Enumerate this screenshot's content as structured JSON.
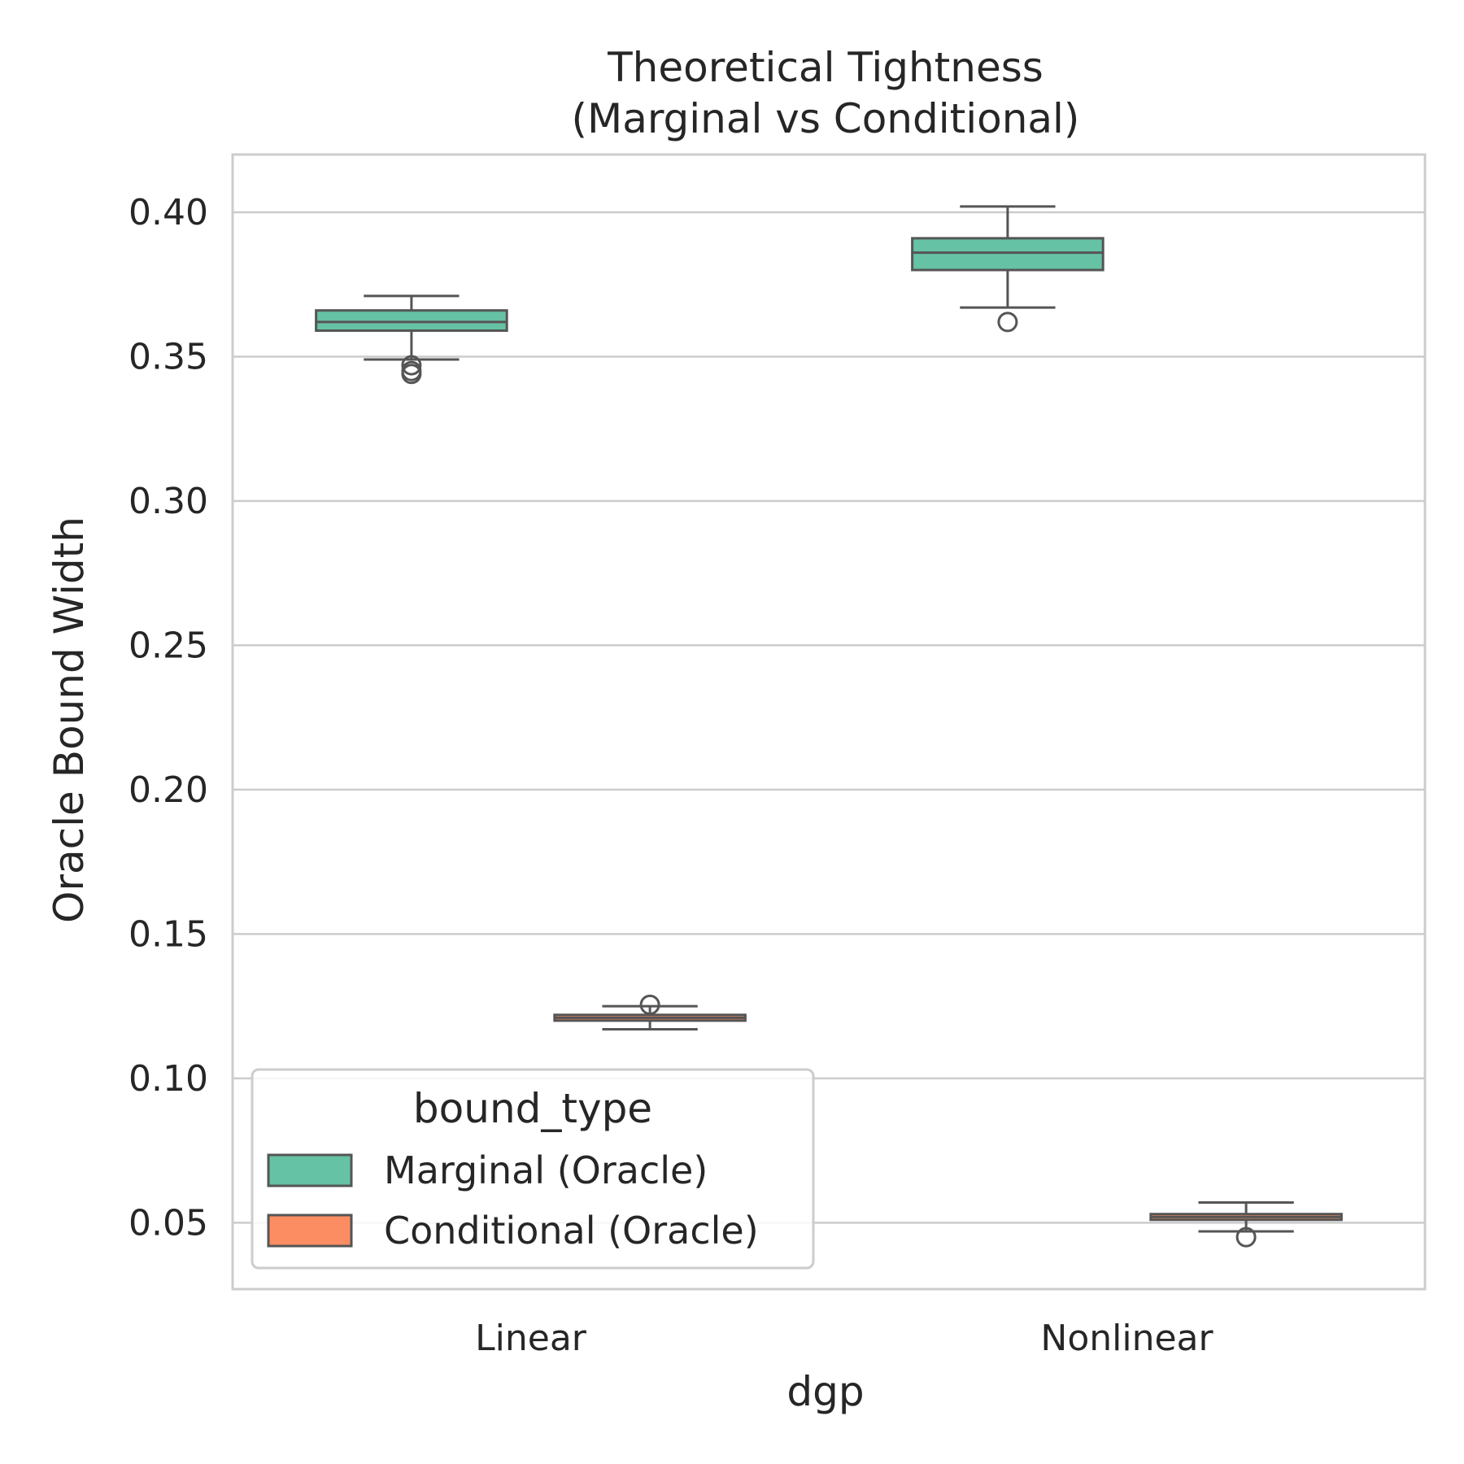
{
  "chart_data": {
    "type": "box",
    "title_lines": [
      "Theoretical Tightness",
      "(Marginal vs Conditional)"
    ],
    "xlabel": "dgp",
    "ylabel": "Oracle Bound Width",
    "categories": [
      "Linear",
      "Nonlinear"
    ],
    "ylim": [
      0.027,
      0.42
    ],
    "yticks": [
      0.05,
      0.1,
      0.15,
      0.2,
      0.25,
      0.3,
      0.35,
      0.4
    ],
    "ytick_labels": [
      "0.05",
      "0.10",
      "0.15",
      "0.20",
      "0.25",
      "0.30",
      "0.35",
      "0.40"
    ],
    "grid": true,
    "legend": {
      "title": "bound_type",
      "placement": "lower-left",
      "entries": [
        "Marginal (Oracle)",
        "Conditional (Oracle)"
      ]
    },
    "series": [
      {
        "name": "Marginal (Oracle)",
        "color": "#66c2a5",
        "boxes": [
          {
            "category": "Linear",
            "whisker_low": 0.349,
            "q1": 0.359,
            "median": 0.362,
            "q3": 0.366,
            "whisker_high": 0.371,
            "outliers": [
              0.344,
              0.345,
              0.347
            ]
          },
          {
            "category": "Nonlinear",
            "whisker_low": 0.367,
            "q1": 0.38,
            "median": 0.386,
            "q3": 0.391,
            "whisker_high": 0.402,
            "outliers": [
              0.362
            ]
          }
        ]
      },
      {
        "name": "Conditional (Oracle)",
        "color": "#fc8d62",
        "boxes": [
          {
            "category": "Linear",
            "whisker_low": 0.117,
            "q1": 0.12,
            "median": 0.121,
            "q3": 0.122,
            "whisker_high": 0.125,
            "outliers": [
              0.1255
            ]
          },
          {
            "category": "Nonlinear",
            "whisker_low": 0.047,
            "q1": 0.051,
            "median": 0.052,
            "q3": 0.053,
            "whisker_high": 0.057,
            "outliers": [
              0.045
            ]
          }
        ]
      }
    ]
  }
}
